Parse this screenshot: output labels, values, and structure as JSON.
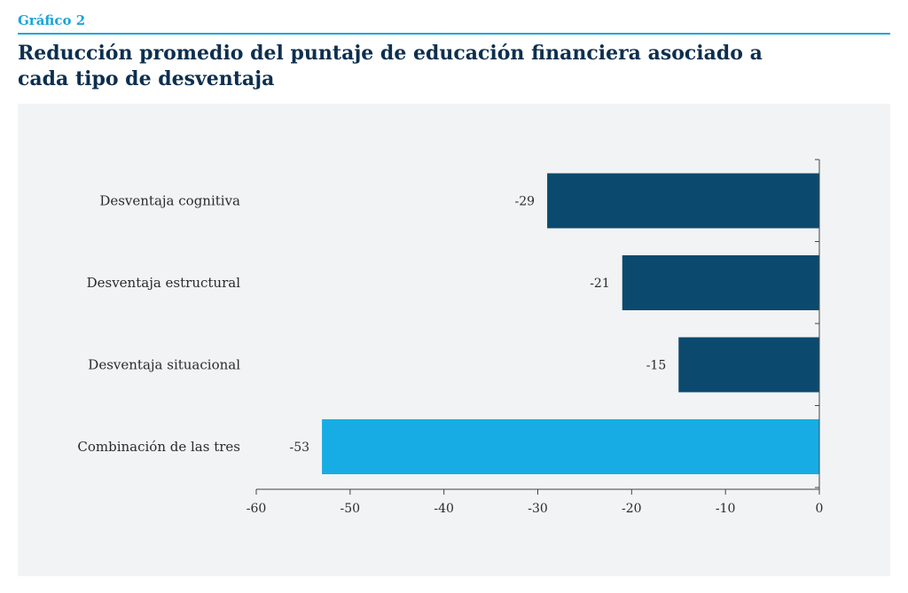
{
  "figure": {
    "label": "Gráfico 2",
    "title": "Reducción promedio del puntaje de educación financiera asociado a cada tipo de desventaja"
  },
  "colors": {
    "accent": "#1aa6d9",
    "title": "#0d2f4f",
    "bar_dark": "#0b4a6e",
    "bar_highlight": "#17ade4",
    "panel": "#f1f3f4"
  },
  "chart_data": {
    "type": "bar",
    "orientation": "horizontal",
    "categories": [
      "Desventaja cognitiva",
      "Desventaja estructural",
      "Desventaja situacional",
      "Combinación de las tres"
    ],
    "values": [
      -29,
      -21,
      -15,
      -53
    ],
    "data_labels": [
      "-29",
      "-21",
      "-15",
      "-53"
    ],
    "highlight_index": 3,
    "xlim": [
      -60,
      0
    ],
    "xticks": [
      -60,
      -50,
      -40,
      -30,
      -20,
      -10,
      0
    ],
    "xtick_labels": [
      "-60",
      "-50",
      "-40",
      "-30",
      "-20",
      "-10",
      "0"
    ],
    "grid": false,
    "legend": "none"
  }
}
